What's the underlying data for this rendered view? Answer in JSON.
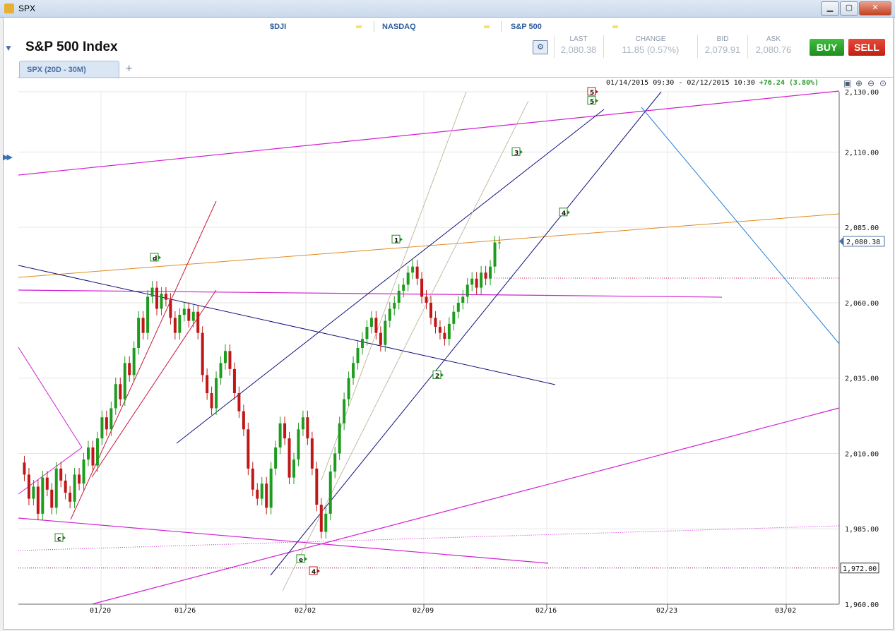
{
  "window": {
    "title": "SPX",
    "min": "▁",
    "max": "▢",
    "close": "✕"
  },
  "tickers": [
    {
      "label": "$DJI"
    },
    {
      "label": "NASDAQ"
    },
    {
      "label": "S&P 500"
    }
  ],
  "header": {
    "title": "S&P 500 Index"
  },
  "quote": {
    "last_label": "LAST",
    "last": "2,080.38",
    "change_label": "CHANGE",
    "change": "11.85 (0.57%)",
    "bid_label": "BID",
    "bid": "2,079.91",
    "ask_label": "ASK",
    "ask": "2,080.76"
  },
  "actions": {
    "buy": "BUY",
    "sell": "SELL"
  },
  "tabs": [
    {
      "label": "SPX (20D - 30M)"
    }
  ],
  "tab_add": "+",
  "range": {
    "dates": "01/14/2015 09:30 - 02/12/2015 10:30",
    "change": "+76.24 (3.80%)"
  },
  "colors": {
    "up": "#1e9c1e",
    "down": "#c01818",
    "magenta": "#d020d0",
    "navy": "#10107a",
    "orange": "#e08a20",
    "khaki": "#b8aa8a",
    "blue": "#2a7fd0",
    "crimson": "#c8183c"
  },
  "chart_data": {
    "type": "candlestick",
    "symbol": "SPX",
    "x_tick_labels": [
      "01/20",
      "01/26",
      "02/02",
      "02/09",
      "02/16",
      "02/23",
      "03/02"
    ],
    "y_tick_labels": [
      "2,130.00",
      "2,110.00",
      "2,085.00",
      "2,060.00",
      "2,035.00",
      "2,010.00",
      "1,985.00",
      "1,960.00"
    ],
    "y_ticks": [
      2130,
      2110,
      2085,
      2060,
      2035,
      2010,
      1985,
      1960
    ],
    "ylim": [
      1960,
      2130
    ],
    "current_price_label": "2,080.38",
    "current_price": 2080.38,
    "reference_level_label": "1,972.00",
    "reference_level": 1972,
    "grid": true,
    "price_path": [
      2007,
      2003,
      1995,
      1999,
      1990,
      2002,
      1998,
      1992,
      2005,
      2001,
      1997,
      1994,
      2003,
      2000,
      2008,
      2012,
      2006,
      2015,
      2022,
      2018,
      2025,
      2033,
      2028,
      2040,
      2036,
      2045,
      2055,
      2050,
      2062,
      2065,
      2058,
      2063,
      2061,
      2055,
      2050,
      2056,
      2058,
      2054,
      2057,
      2050,
      2036,
      2030,
      2025,
      2035,
      2040,
      2044,
      2038,
      2030,
      2024,
      2018,
      2005,
      1998,
      1995,
      2000,
      1992,
      2005,
      2012,
      2020,
      2015,
      2002,
      2008,
      2018,
      2022,
      2015,
      2005,
      1993,
      1984,
      1990,
      2004,
      2010,
      2020,
      2028,
      2035,
      2040,
      2045,
      2048,
      2052,
      2055,
      2050,
      2046,
      2054,
      2058,
      2060,
      2064,
      2066,
      2070,
      2072,
      2068,
      2062,
      2060,
      2055,
      2052,
      2050,
      2048,
      2053,
      2057,
      2060,
      2062,
      2066,
      2068,
      2065,
      2070,
      2068,
      2072,
      2080,
      2080
    ],
    "wave_labels": [
      {
        "text": "c",
        "date": "01/16",
        "price": 1982,
        "color": "green"
      },
      {
        "text": "d",
        "date": "01/23",
        "price": 2075,
        "color": "green"
      },
      {
        "text": "e",
        "date": "01/30",
        "price": 1975,
        "color": "green"
      },
      {
        "text": "4",
        "date": "02/02",
        "price": 1971,
        "color": "red"
      },
      {
        "text": "1",
        "date": "02/06",
        "price": 2081,
        "color": "green"
      },
      {
        "text": "2",
        "date": "02/09",
        "price": 2036,
        "color": "green"
      },
      {
        "text": "3",
        "date": "02/12",
        "price": 2110,
        "color": "green"
      },
      {
        "text": "4",
        "date": "02/14",
        "price": 2090,
        "color": "green"
      },
      {
        "text": "5",
        "date": "02/17",
        "price": 2130,
        "color": "red"
      },
      {
        "text": "5",
        "date": "02/17",
        "price": 2127,
        "color": "green"
      }
    ]
  }
}
